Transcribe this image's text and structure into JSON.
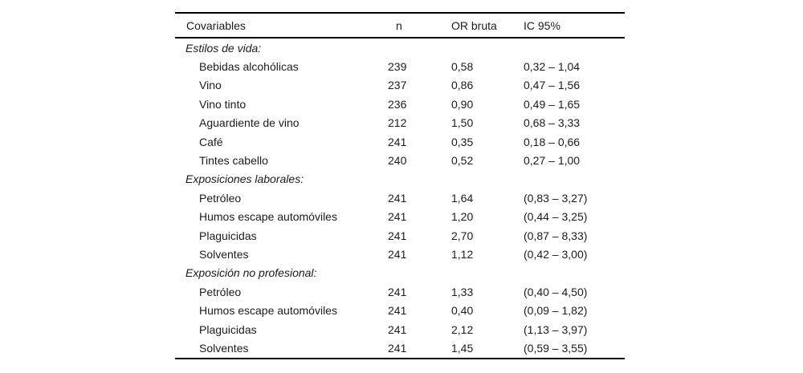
{
  "table": {
    "columns": [
      "Covariables",
      "n",
      "OR bruta",
      "IC 95%"
    ],
    "sections": [
      {
        "label": "Estilos de vida:",
        "rows": [
          {
            "name": "Bebidas alcohólicas",
            "n": "239",
            "or": "0,58",
            "ic": "0,32 – 1,04"
          },
          {
            "name": "Vino",
            "n": "237",
            "or": "0,86",
            "ic": "0,47 – 1,56"
          },
          {
            "name": "Vino tinto",
            "n": "236",
            "or": "0,90",
            "ic": "0,49 – 1,65"
          },
          {
            "name": "Aguardiente de vino",
            "n": "212",
            "or": "1,50",
            "ic": "0,68 – 3,33"
          },
          {
            "name": "Café",
            "n": "241",
            "or": "0,35",
            "ic": "0,18 – 0,66"
          },
          {
            "name": "Tintes cabello",
            "n": "240",
            "or": "0,52",
            "ic": "0,27 – 1,00"
          }
        ]
      },
      {
        "label": "Exposiciones laborales:",
        "rows": [
          {
            "name": "Petróleo",
            "n": "241",
            "or": "1,64",
            "ic": "(0,83 – 3,27)"
          },
          {
            "name": "Humos escape automóviles",
            "n": "241",
            "or": "1,20",
            "ic": "(0,44 – 3,25)"
          },
          {
            "name": "Plaguicidas",
            "n": "241",
            "or": "2,70",
            "ic": "(0,87 – 8,33)"
          },
          {
            "name": "Solventes",
            "n": "241",
            "or": "1,12",
            "ic": "(0,42 – 3,00)"
          }
        ]
      },
      {
        "label": "Exposición no profesional:",
        "rows": [
          {
            "name": "Petróleo",
            "n": "241",
            "or": "1,33",
            "ic": "(0,40 – 4,50)"
          },
          {
            "name": "Humos escape automóviles",
            "n": "241",
            "or": "0,40",
            "ic": "(0,09 – 1,82)"
          },
          {
            "name": "Plaguicidas",
            "n": "241",
            "or": "2,12",
            "ic": "(1,13 – 3,97)"
          },
          {
            "name": "Solventes",
            "n": "241",
            "or": "1,45",
            "ic": "(0,59 – 3,55)"
          }
        ]
      }
    ]
  },
  "colors": {
    "text": "#1b1b1b",
    "rule": "#000000",
    "background": "#ffffff"
  }
}
